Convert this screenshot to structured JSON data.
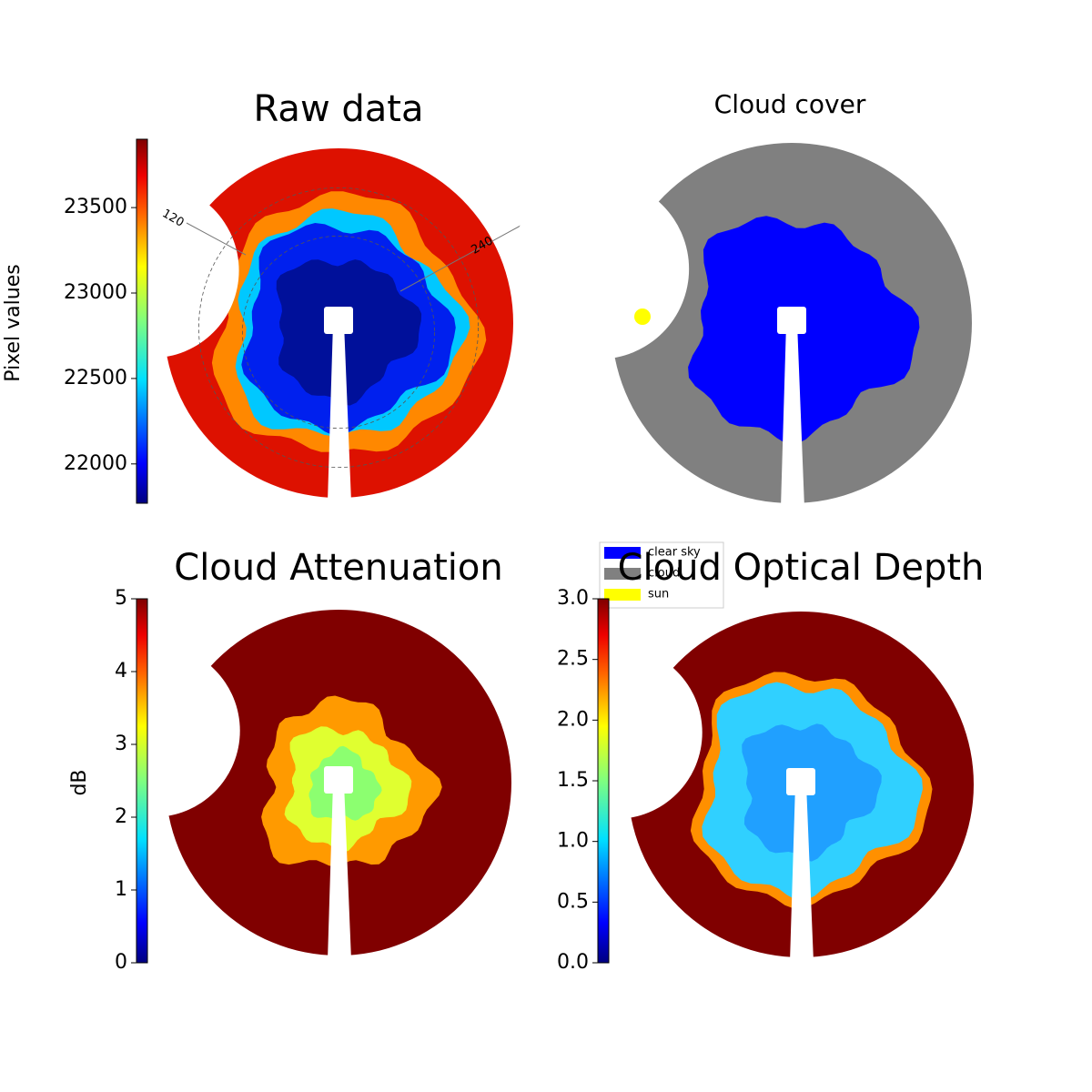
{
  "chart_data": [
    {
      "type": "image",
      "title": "Raw data",
      "annotations": [
        "120",
        "240"
      ],
      "colorbar": {
        "label": "Pixel values",
        "cmap": "jet",
        "ylim": [
          21770,
          23900
        ],
        "yticks": [
          22000,
          22500,
          23000,
          23500
        ]
      }
    },
    {
      "type": "image",
      "title": "Cloud cover",
      "series": [
        {
          "name": "clear sky",
          "color": "#0000ff"
        },
        {
          "name": "cloud",
          "color": "#808080"
        },
        {
          "name": "sun",
          "color": "#ffff00"
        }
      ]
    },
    {
      "type": "image",
      "title": "Cloud Attenuation",
      "colorbar": {
        "label": "dB",
        "cmap": "jet",
        "ylim": [
          0,
          5
        ],
        "yticks": [
          0,
          1,
          2,
          3,
          4,
          5
        ]
      }
    },
    {
      "type": "image",
      "title": "Cloud Optical Depth",
      "colorbar": {
        "cmap": "jet",
        "ylim": [
          0,
          3
        ],
        "yticks": [
          {
            "value": 0,
            "label": "0.0"
          },
          0.5,
          {
            "value": 1,
            "label": "1.0"
          },
          1.5,
          {
            "value": 2,
            "label": "2.0"
          },
          2.5,
          {
            "value": 3,
            "label": "3.0"
          }
        ]
      }
    }
  ]
}
